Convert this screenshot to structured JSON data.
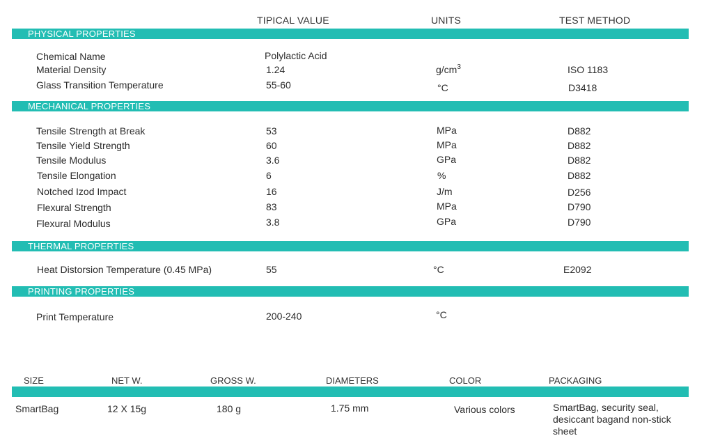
{
  "columns": {
    "value": "TIPICAL VALUE",
    "units": "UNITS",
    "method": "TEST METHOD"
  },
  "sections": [
    {
      "title": "PHYSICAL PROPERTIES",
      "rows": [
        {
          "name": "Chemical Name",
          "value": "Polylactic Acid",
          "unit": "",
          "method": ""
        },
        {
          "name": "Material Density",
          "value": "1.24",
          "unit": "g/cm",
          "unit_sup": "3",
          "method": "ISO 1183"
        },
        {
          "name": "Glass Transition Temperature",
          "value": "55-60",
          "unit": "°C",
          "method": "D3418"
        }
      ]
    },
    {
      "title": "MECHANICAL PROPERTIES",
      "rows": [
        {
          "name": "Tensile Strength at Break",
          "value": "53",
          "unit": "MPa",
          "method": "D882"
        },
        {
          "name": "Tensile Yield Strength",
          "value": "60",
          "unit": "MPa",
          "method": "D882"
        },
        {
          "name": "Tensile Modulus",
          "value": "3.6",
          "unit": "GPa",
          "method": "D882"
        },
        {
          "name": "Tensile Elongation",
          "value": "6",
          "unit": "%",
          "method": "D882"
        },
        {
          "name": "Notched Izod Impact",
          "value": "16",
          "unit": "J/m",
          "method": "D256"
        },
        {
          "name": "Flexural Strength",
          "value": "83",
          "unit": "MPa",
          "method": "D790"
        },
        {
          "name": "Flexural Modulus",
          "value": "3.8",
          "unit": "GPa",
          "method": "D790"
        }
      ]
    },
    {
      "title": "THERMAL PROPERTIES",
      "rows": [
        {
          "name": "Heat Distorsion Temperature (0.45 MPa)",
          "value": "55",
          "unit": "°C",
          "method": "E2092"
        }
      ]
    },
    {
      "title": "PRINTING PROPERTIES",
      "rows": [
        {
          "name": "Print Temperature",
          "value": "200-240",
          "unit": "°C",
          "method": ""
        }
      ]
    }
  ],
  "packaging_table": {
    "headers": [
      "SIZE",
      "NET W.",
      "GROSS W.",
      "DIAMETERS",
      "COLOR",
      "PACKAGING"
    ],
    "row": [
      "SmartBag",
      "12 X 15g",
      "180 g",
      "1.75 mm",
      "Various colors",
      "SmartBag, security seal, desiccant bagand non-stick sheet"
    ]
  },
  "colors": {
    "band": "#22bdb3",
    "band_text": "#ffffff",
    "text": "#2b2b2b"
  }
}
